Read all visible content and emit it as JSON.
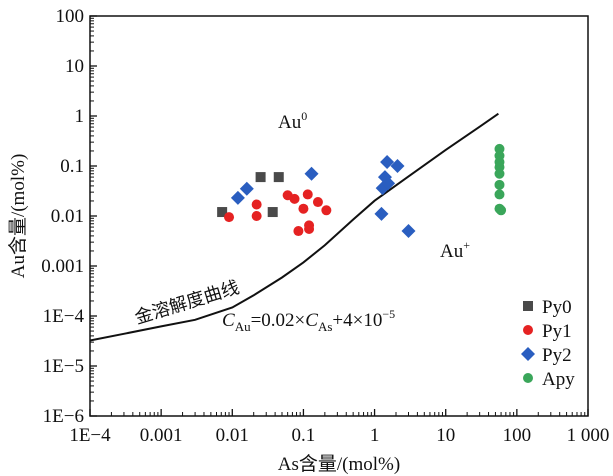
{
  "chart_data": {
    "type": "scatter",
    "xlabel": "As含量/(mol%)",
    "ylabel": "Au含量/(mol%)",
    "x_scale": "log",
    "y_scale": "log",
    "xlim": [
      0.0001,
      1000
    ],
    "ylim": [
      1e-06,
      100
    ],
    "x_ticks": [
      {
        "value": 0.0001,
        "label": "1E−4"
      },
      {
        "value": 0.001,
        "label": "0.001"
      },
      {
        "value": 0.01,
        "label": "0.01"
      },
      {
        "value": 0.1,
        "label": "0.1"
      },
      {
        "value": 1,
        "label": "1"
      },
      {
        "value": 10,
        "label": "10"
      },
      {
        "value": 100,
        "label": "100"
      },
      {
        "value": 1000,
        "label": "1 000"
      }
    ],
    "y_ticks": [
      {
        "value": 1e-06,
        "label": "1E−6"
      },
      {
        "value": 1e-05,
        "label": "1E−5"
      },
      {
        "value": 0.0001,
        "label": "1E−4"
      },
      {
        "value": 0.001,
        "label": "0.001"
      },
      {
        "value": 0.01,
        "label": "0.01"
      },
      {
        "value": 0.1,
        "label": "0.1"
      },
      {
        "value": 1,
        "label": "1"
      },
      {
        "value": 10,
        "label": "10"
      },
      {
        "value": 100,
        "label": "100"
      }
    ],
    "grid": false,
    "legend_position": "bottom-right",
    "series": [
      {
        "name": "Py0",
        "marker": "square",
        "color": "#4a4a4a",
        "points": [
          [
            0.0072,
            0.012
          ],
          [
            0.025,
            0.06
          ],
          [
            0.037,
            0.012
          ],
          [
            0.045,
            0.06
          ]
        ]
      },
      {
        "name": "Py1",
        "marker": "circle",
        "color": "#e52222",
        "points": [
          [
            0.009,
            0.0095
          ],
          [
            0.022,
            0.017
          ],
          [
            0.022,
            0.01
          ],
          [
            0.06,
            0.026
          ],
          [
            0.075,
            0.022
          ],
          [
            0.085,
            0.005
          ],
          [
            0.1,
            0.014
          ],
          [
            0.115,
            0.027
          ],
          [
            0.12,
            0.0055
          ],
          [
            0.12,
            0.0065
          ],
          [
            0.16,
            0.019
          ],
          [
            0.21,
            0.013
          ]
        ]
      },
      {
        "name": "Py2",
        "marker": "diamond",
        "color": "#2a5ec0",
        "points": [
          [
            0.012,
            0.023
          ],
          [
            0.016,
            0.035
          ],
          [
            0.13,
            0.07
          ],
          [
            1.25,
            0.011
          ],
          [
            1.3,
            0.036
          ],
          [
            1.4,
            0.06
          ],
          [
            1.5,
            0.12
          ],
          [
            1.55,
            0.045
          ],
          [
            2.1,
            0.1
          ],
          [
            3,
            0.005
          ]
        ]
      },
      {
        "name": "Apy",
        "marker": "circle",
        "color": "#3aa65a",
        "points": [
          [
            57,
            0.22
          ],
          [
            57,
            0.16
          ],
          [
            57,
            0.12
          ],
          [
            57,
            0.095
          ],
          [
            57,
            0.07
          ],
          [
            57,
            0.042
          ],
          [
            57,
            0.027
          ],
          [
            57,
            0.014
          ],
          [
            60,
            0.013
          ]
        ]
      }
    ],
    "curve": {
      "label": "金溶解度曲线",
      "x": [
        0.0001,
        0.0003,
        0.001,
        0.003,
        0.01,
        0.02,
        0.05,
        0.1,
        0.2,
        0.5,
        1,
        3,
        10,
        30,
        55
      ],
      "y": [
        3.23e-05,
        4.4e-05,
        6.2e-05,
        8.4e-05,
        0.000148,
        0.00026,
        0.00059,
        0.00118,
        0.0026,
        0.0085,
        0.0202,
        0.062,
        0.21,
        0.61,
        1.11
      ]
    },
    "annotations": {
      "au0_base": "Au",
      "au0_sup": "0",
      "auplus_base": "Au",
      "auplus_sup": "+",
      "eq_c1": "C",
      "eq_sub1": "Au",
      "eq_mid": "=0.02×",
      "eq_c2": "C",
      "eq_sub2": "As",
      "eq_tail": "+4×10",
      "eq_exp": "−5"
    }
  }
}
